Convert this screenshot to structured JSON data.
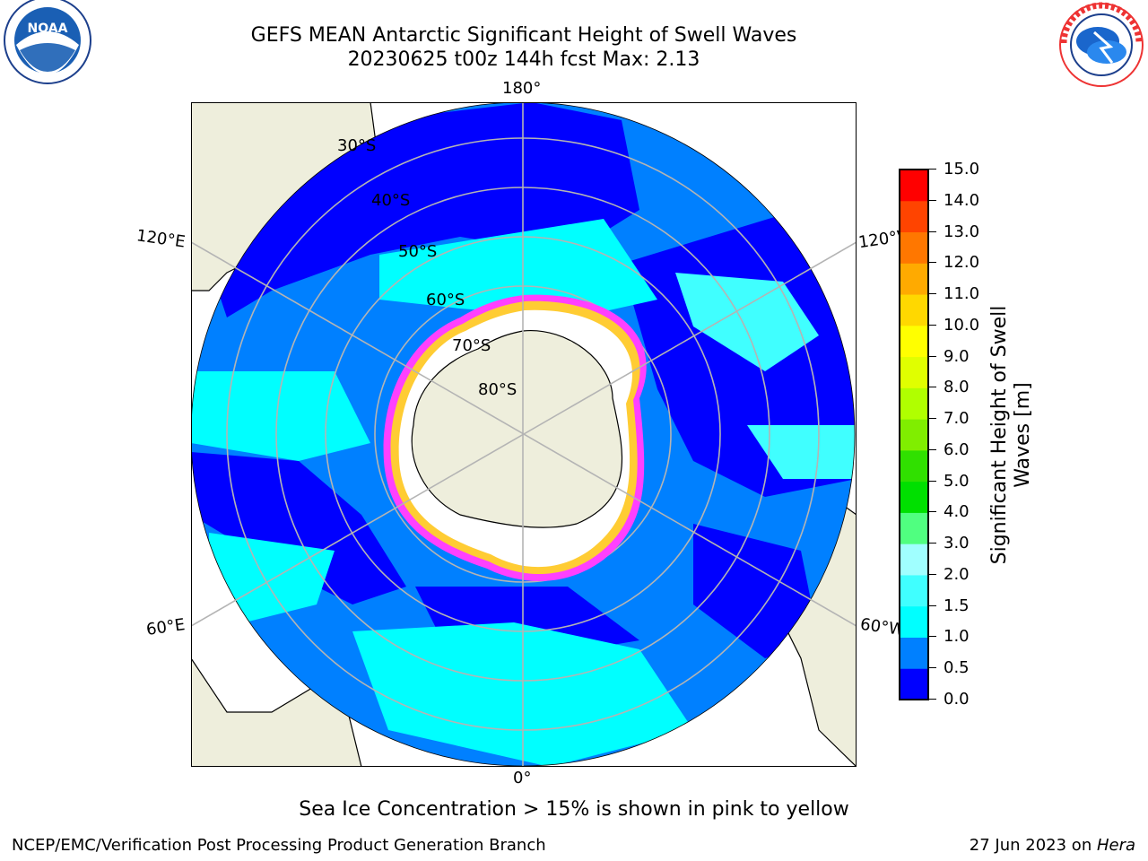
{
  "title": {
    "line1": "GEFS MEAN Antarctic Significant Height of Swell Waves",
    "line2": "20230625 t00z 144h fcst   Max: 2.13"
  },
  "logos": {
    "left": {
      "name": "noaa-logo",
      "text": "NOAA",
      "ring_text": "NATIONAL OCEANIC AND ATMOSPHERIC ADMINISTRATION · U.S. DEPARTMENT OF COMMERCE"
    },
    "right": {
      "name": "nws-logo",
      "ring_text": "NATIONAL WEATHER SERVICE"
    }
  },
  "map": {
    "projection": "south-polar-stereographic",
    "lon_labels": {
      "top": "180°",
      "bottom": "0°",
      "upper_left": "120°E",
      "upper_right": "120°W",
      "lower_left": "60°E",
      "lower_right": "60°W"
    },
    "lat_labels": [
      "30°S",
      "40°S",
      "50°S",
      "60°S",
      "70°S",
      "80°S"
    ],
    "colors": {
      "land": "#eeeedc",
      "ocean_0_0.5": "#0000ff",
      "ocean_0.5_1.0": "#0080ff",
      "ocean_1.0_1.5": "#00ffff",
      "ocean_1.5_2.0": "#40ffff",
      "sea_ice_edge_pink": "#ff40ff",
      "sea_ice_edge_yellow": "#ffcc33",
      "graticule": "#b4b4b4"
    }
  },
  "colorbar": {
    "label": "Significant Height of Swell Waves [m]",
    "label_line1": "Significant Height of Swell",
    "label_line2": "Waves [m]",
    "ticks": [
      "0.0",
      "0.5",
      "1.0",
      "1.5",
      "2.0",
      "3.0",
      "4.0",
      "5.0",
      "6.0",
      "7.0",
      "8.0",
      "9.0",
      "10.0",
      "11.0",
      "12.0",
      "13.0",
      "14.0",
      "15.0"
    ],
    "colors": [
      "#0000ff",
      "#0080ff",
      "#00ffff",
      "#40ffff",
      "#a0ffff",
      "#50ff80",
      "#00e000",
      "#30e000",
      "#80ee00",
      "#b0ff00",
      "#e0ff00",
      "#ffff00",
      "#ffd800",
      "#ffaa00",
      "#ff7700",
      "#ff4400",
      "#ff0000"
    ]
  },
  "caption": "Sea Ice Concentration > 15% is shown in pink to yellow",
  "footer": {
    "left": "NCEP/EMC/Verification Post Processing Product Generation Branch",
    "right_prefix": "27 Jun 2023 on ",
    "right_host": "Hera"
  }
}
